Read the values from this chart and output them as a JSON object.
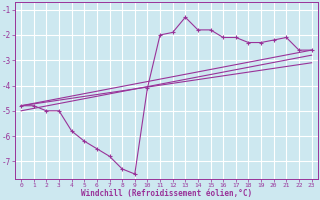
{
  "background_color": "#cde8f0",
  "grid_color": "#ffffff",
  "line_color": "#993399",
  "xlabel": "Windchill (Refroidissement éolien,°C)",
  "xlim": [
    -0.5,
    23.5
  ],
  "ylim": [
    -7.7,
    -0.7
  ],
  "yticks": [
    -7,
    -6,
    -5,
    -4,
    -3,
    -2,
    -1
  ],
  "xticks": [
    0,
    1,
    2,
    3,
    4,
    5,
    6,
    7,
    8,
    9,
    10,
    11,
    12,
    13,
    14,
    15,
    16,
    17,
    18,
    19,
    20,
    21,
    22,
    23
  ],
  "series1_x": [
    0,
    1,
    2,
    3,
    4,
    5,
    6,
    7,
    8,
    9,
    10,
    11,
    12,
    13,
    14,
    15,
    16,
    17,
    18,
    19,
    20,
    21,
    22,
    23
  ],
  "series1_y": [
    -4.8,
    -4.8,
    -5.0,
    -5.0,
    -5.8,
    -6.2,
    -6.5,
    -6.8,
    -7.3,
    -7.5,
    -4.1,
    -2.0,
    -1.9,
    -1.3,
    -1.8,
    -1.8,
    -2.1,
    -2.1,
    -2.3,
    -2.3,
    -2.2,
    -2.1,
    -2.6,
    -2.6
  ],
  "series2_x": [
    0,
    23
  ],
  "series2_y": [
    -4.8,
    -2.6
  ],
  "series3_x": [
    0,
    23
  ],
  "series3_y": [
    -5.0,
    -2.8
  ],
  "series4_x": [
    0,
    23
  ],
  "series4_y": [
    -4.8,
    -3.1
  ]
}
